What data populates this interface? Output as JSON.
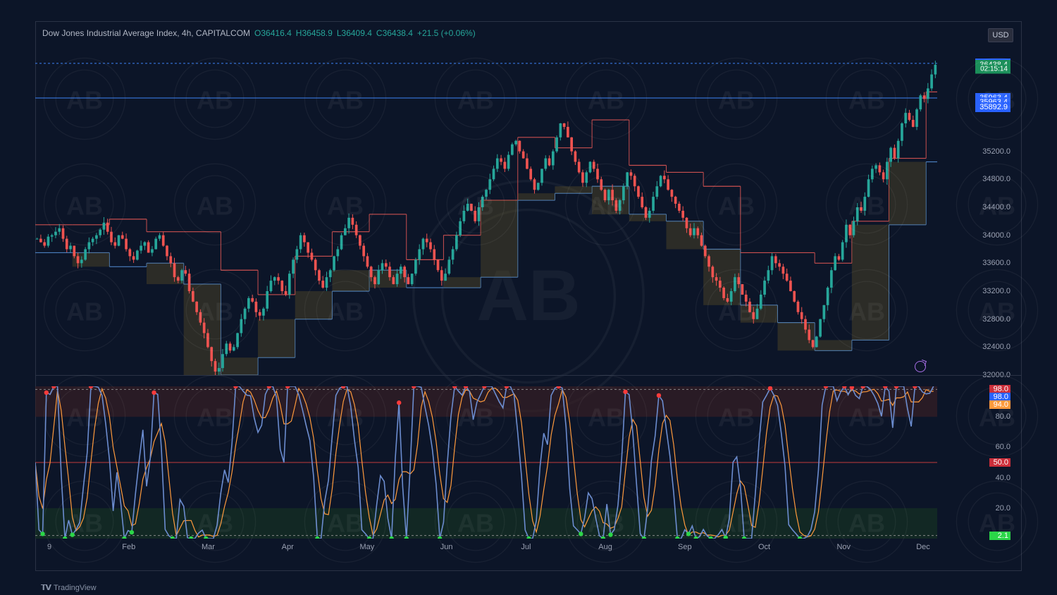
{
  "header": {
    "symbol": "Dow Jones Industrial Average Index, 4h, CAPITALCOM",
    "o_label": "O",
    "o": "36416.4",
    "h_label": "H",
    "h": "36458.9",
    "l_label": "L",
    "l": "36409.4",
    "c_label": "C",
    "c": "36438.4",
    "chg": "+21.5 (+0.06%)"
  },
  "currency_button": "USD",
  "footer": {
    "brand": "TradingView",
    "logo_glyph": "𝟭𝗩"
  },
  "colors": {
    "bg": "#0c1528",
    "grid": "#1a2236",
    "border": "#2a3245",
    "text": "#9aa1b2",
    "up": "#26a69a",
    "down": "#ef5350",
    "heikin_shadow": "#6a5a26",
    "sr_band": "#4a7fbf",
    "hline_price": "#3b82f6",
    "osc_line": "#6b8ccf",
    "osc_signal": "#ff9a3c",
    "osc_ob_band": "#3d1f23",
    "osc_os_band": "#173622",
    "dot_high": "#ff3b3b",
    "dot_low": "#2bd648",
    "pill_current": "#2962ff",
    "pill_target": "#1b8f5a",
    "pill_hl": "#2962ff",
    "pill_98": "#cc2e3a",
    "pill_94": "#ff9a3c",
    "pill_50": "#cc2e3a",
    "pill_2": "#2bd648"
  },
  "main_chart": {
    "type": "candlestick-with-step-channel",
    "ylim": [
      32000,
      36800
    ],
    "yticks": [
      32000,
      32400,
      32800,
      33200,
      33600,
      34000,
      34400,
      34800,
      35200
    ],
    "price_pills": [
      {
        "value": "36458.9",
        "bg": "#2962ff",
        "y": 36458.9
      },
      {
        "value": "36438.4",
        "bg": "#1b8f5a",
        "y": 36438.4
      },
      {
        "value": "02:15:14",
        "bg": "#1b8f5a",
        "y": 36380,
        "small": true
      },
      {
        "value": "35963.4",
        "bg": "#2962ff",
        "y": 35963.4
      },
      {
        "value": "35963.4",
        "bg": "#2962ff",
        "y": 35900
      },
      {
        "value": "35892.9",
        "bg": "#2962ff",
        "y": 35830
      }
    ],
    "hlines": [
      {
        "y": 36458.9,
        "color": "#3b82f6",
        "dash": "3,3"
      },
      {
        "y": 35963.4,
        "color": "#3b82f6"
      }
    ],
    "x_months": [
      "9",
      "Feb",
      "Mar",
      "Apr",
      "May",
      "Jun",
      "Jul",
      "Aug",
      "Sep",
      "Oct",
      "Nov",
      "Dec"
    ],
    "price_seed": [
      33950,
      33900,
      33850,
      33980,
      34000,
      34050,
      34100,
      33950,
      33800,
      33850,
      33700,
      33600,
      33650,
      33800,
      33900,
      33950,
      34000,
      34080,
      34180,
      34050,
      33900,
      33850,
      34000,
      33950,
      33800,
      33700,
      33650,
      33780,
      33850,
      33900,
      33750,
      33800,
      33950,
      34000,
      33850,
      33700,
      33600,
      33400,
      33350,
      33500,
      33450,
      33200,
      33050,
      32900,
      32750,
      32600,
      32400,
      32200,
      32050,
      32100,
      32300,
      32450,
      32350,
      32400,
      32600,
      32800,
      32950,
      33100,
      33050,
      32900,
      32850,
      32950,
      33200,
      33350,
      33400,
      33350,
      33200,
      33150,
      33450,
      33650,
      33800,
      34000,
      33900,
      33750,
      33650,
      33500,
      33350,
      33250,
      33400,
      33500,
      33700,
      33800,
      34000,
      34100,
      34250,
      34150,
      34000,
      33850,
      33700,
      33550,
      33400,
      33300,
      33500,
      33600,
      33550,
      33400,
      33300,
      33450,
      33550,
      33400,
      33300,
      33450,
      33650,
      33800,
      33950,
      33900,
      33800,
      33650,
      33500,
      33350,
      33450,
      33650,
      33800,
      34000,
      34200,
      34350,
      34450,
      34350,
      34200,
      34400,
      34550,
      34650,
      34800,
      34950,
      35100,
      35050,
      34950,
      35150,
      35300,
      35350,
      35200,
      35100,
      34950,
      34800,
      34650,
      34750,
      34950,
      35100,
      35000,
      35200,
      35400,
      35600,
      35550,
      35400,
      35200,
      35050,
      34900,
      34750,
      34900,
      35050,
      34950,
      34800,
      34650,
      34500,
      34650,
      34500,
      34350,
      34500,
      34700,
      34900,
      34850,
      34700,
      34550,
      34400,
      34250,
      34350,
      34550,
      34700,
      34850,
      34800,
      34650,
      34550,
      34450,
      34350,
      34250,
      34100,
      34000,
      34100,
      34000,
      33850,
      33700,
      33550,
      33400,
      33350,
      33250,
      33100,
      33050,
      33200,
      33400,
      33300,
      33150,
      33050,
      32900,
      32800,
      32950,
      33150,
      33350,
      33500,
      33700,
      33600,
      33550,
      33450,
      33350,
      33200,
      33050,
      32900,
      32800,
      32650,
      32500,
      32400,
      32550,
      32800,
      33000,
      33250,
      33500,
      33700,
      33650,
      33900,
      34150,
      34000,
      34200,
      34400,
      34350,
      34550,
      34800,
      34950,
      35000,
      34900,
      34800,
      35050,
      35250,
      35100,
      35350,
      35600,
      35750,
      35650,
      35550,
      35800,
      36000,
      35950,
      36100,
      36300,
      36438
    ]
  },
  "oscillator": {
    "type": "stochastic",
    "ylim": [
      0,
      100
    ],
    "yticks": [
      20,
      40,
      60,
      80
    ],
    "bands": {
      "upper": 80,
      "lower": 20
    },
    "hlines": [
      {
        "y": 98,
        "dash": "3,3",
        "color": "#888"
      },
      {
        "y": 50,
        "color": "#1b8753"
      },
      {
        "y": 2,
        "dash": "3,3",
        "color": "#888"
      }
    ],
    "pills": [
      {
        "value": "98.0",
        "bg": "#cc2e3a",
        "y": 98
      },
      {
        "value": "98.0",
        "bg": "#2962ff",
        "y": 93
      },
      {
        "value": "94.0",
        "bg": "#ff9a3c",
        "y": 88
      },
      {
        "value": "50.0",
        "bg": "#cc2e3a",
        "y": 50
      },
      {
        "value": "2.1",
        "bg": "#2bd648",
        "y": 2
      }
    ]
  },
  "watermark": {
    "text": "AB"
  }
}
